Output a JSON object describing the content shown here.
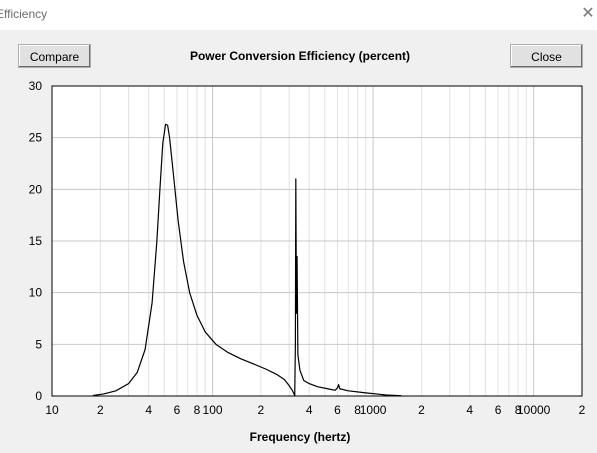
{
  "window": {
    "title": "Efficiency",
    "close_glyph": "✕"
  },
  "toolbar": {
    "compare_label": "Compare",
    "close_label": "Close"
  },
  "chart_data": {
    "type": "line",
    "title": "Power Conversion Efficiency (percent)",
    "xlabel": "Frequency (hertz)",
    "ylabel": "",
    "xscale": "log",
    "xlim": [
      10,
      20000
    ],
    "ylim": [
      0,
      30
    ],
    "yticks": [
      0,
      5,
      10,
      15,
      20,
      25,
      30
    ],
    "xtick_labels": [
      {
        "value": 10,
        "label": "10"
      },
      {
        "value": 20,
        "label": "2"
      },
      {
        "value": 40,
        "label": "4"
      },
      {
        "value": 60,
        "label": "6"
      },
      {
        "value": 80,
        "label": "8"
      },
      {
        "value": 100,
        "label": "100"
      },
      {
        "value": 200,
        "label": "2"
      },
      {
        "value": 400,
        "label": "4"
      },
      {
        "value": 600,
        "label": "6"
      },
      {
        "value": 800,
        "label": "8"
      },
      {
        "value": 1000,
        "label": "1000"
      },
      {
        "value": 2000,
        "label": "2"
      },
      {
        "value": 4000,
        "label": "4"
      },
      {
        "value": 6000,
        "label": "6"
      },
      {
        "value": 8000,
        "label": "8"
      },
      {
        "value": 10000,
        "label": "10000"
      },
      {
        "value": 20000,
        "label": "2"
      }
    ],
    "grid": true,
    "line_color": "#000000",
    "series": [
      {
        "points": [
          [
            18,
            0.05
          ],
          [
            21,
            0.2
          ],
          [
            25,
            0.5
          ],
          [
            30,
            1.2
          ],
          [
            34,
            2.3
          ],
          [
            38,
            4.5
          ],
          [
            42,
            9
          ],
          [
            45,
            15
          ],
          [
            47,
            20
          ],
          [
            49,
            24.5
          ],
          [
            51,
            26.3
          ],
          [
            52.5,
            26.2
          ],
          [
            54,
            25
          ],
          [
            57,
            21.5
          ],
          [
            61,
            17
          ],
          [
            66,
            13
          ],
          [
            72,
            10
          ],
          [
            80,
            7.8
          ],
          [
            90,
            6.2
          ],
          [
            105,
            5.0
          ],
          [
            125,
            4.2
          ],
          [
            150,
            3.6
          ],
          [
            180,
            3.1
          ],
          [
            215,
            2.6
          ],
          [
            250,
            2.1
          ],
          [
            280,
            1.6
          ],
          [
            300,
            1.0
          ],
          [
            315,
            0.5
          ],
          [
            325,
            0.05
          ],
          [
            328,
            5
          ],
          [
            330,
            21
          ],
          [
            333,
            8
          ],
          [
            336,
            13.5
          ],
          [
            340,
            4
          ],
          [
            350,
            2.5
          ],
          [
            370,
            1.5
          ],
          [
            400,
            1.2
          ],
          [
            450,
            0.9
          ],
          [
            520,
            0.7
          ],
          [
            580,
            0.55
          ],
          [
            600,
            0.8
          ],
          [
            610,
            1.1
          ],
          [
            620,
            0.7
          ],
          [
            700,
            0.5
          ],
          [
            900,
            0.3
          ],
          [
            1200,
            0.1
          ],
          [
            1500,
            0.03
          ]
        ]
      }
    ]
  }
}
